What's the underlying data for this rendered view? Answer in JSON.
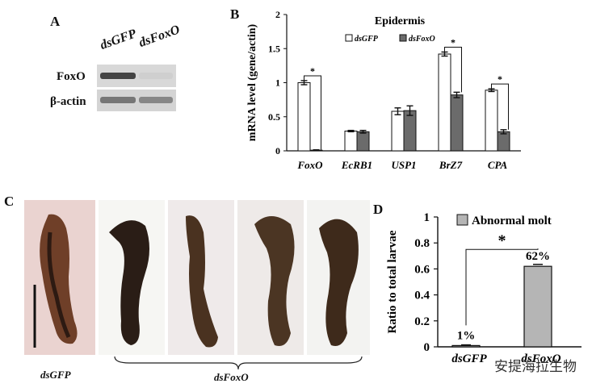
{
  "panels": {
    "a": {
      "letter": "A",
      "lanes": [
        "dsGFP",
        "dsFoxO"
      ],
      "rows": [
        "FoxO",
        "β-actin"
      ],
      "bands": {
        "FoxO": [
          0.85,
          0.05
        ],
        "β-actin": [
          0.55,
          0.45
        ]
      }
    },
    "b": {
      "letter": "B"
    },
    "c": {
      "letter": "C",
      "captions": [
        "dsGFP",
        "dsFoxO"
      ]
    },
    "d": {
      "letter": "D"
    }
  },
  "watermark": "安提海拉生物",
  "chart_data": [
    {
      "panel": "B",
      "type": "bar",
      "title": "Epidermis",
      "ylabel": "mRNA level (gene/actin)",
      "xlabel": "",
      "categories": [
        "FoxO",
        "EcRB1",
        "USP1",
        "BrZ7",
        "CPA"
      ],
      "series": [
        {
          "name": "dsGFP",
          "values": [
            1.0,
            0.29,
            0.58,
            1.42,
            0.89
          ],
          "errors": [
            0.03,
            0.01,
            0.05,
            0.03,
            0.02
          ],
          "color": "#ffffff"
        },
        {
          "name": "dsFoxO",
          "values": [
            0.01,
            0.28,
            0.59,
            0.82,
            0.28
          ],
          "errors": [
            0.005,
            0.02,
            0.07,
            0.04,
            0.03
          ],
          "color": "#6b6b6b"
        }
      ],
      "significance": [
        {
          "category": "FoxO",
          "label": "*"
        },
        {
          "category": "BrZ7",
          "label": "*"
        },
        {
          "category": "CPA",
          "label": "*"
        }
      ],
      "ylim": [
        0,
        2
      ],
      "yticks": [
        "0",
        "0.5",
        "1",
        "1.5",
        "2"
      ],
      "legend": "top",
      "grid": false
    },
    {
      "panel": "D",
      "type": "bar",
      "title": "",
      "ylabel": "Ratio to total larvae",
      "xlabel": "",
      "categories": [
        "dsGFP",
        "dsFoxO"
      ],
      "series": [
        {
          "name": "Abnormal molt",
          "values": [
            0.01,
            0.62
          ],
          "errors": [
            0.005,
            0.015
          ],
          "color": "#b5b5b5"
        }
      ],
      "data_labels": [
        "1%",
        "62%"
      ],
      "significance": [
        {
          "label": "*"
        }
      ],
      "ylim": [
        0,
        1
      ],
      "yticks": [
        "0",
        "0.2",
        "0.4",
        "0.6",
        "0.8",
        "1"
      ],
      "legend": "top-right",
      "grid": false
    }
  ]
}
